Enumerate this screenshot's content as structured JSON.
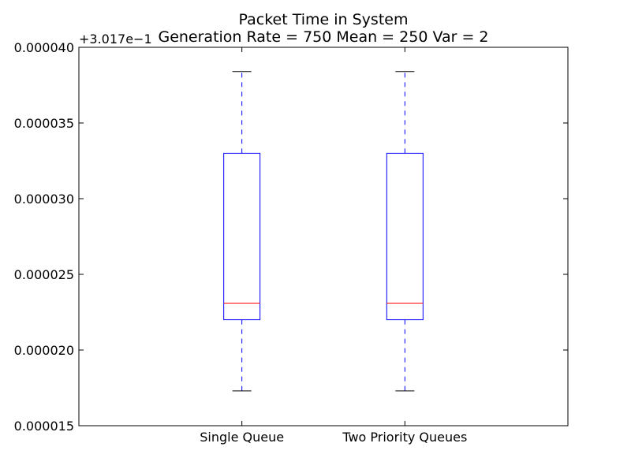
{
  "chart_data": {
    "type": "box",
    "title": "Packet Time in System",
    "subtitle": "Generation Rate = 750 Mean = 250 Var = 2",
    "offset_label": "+3.017e−1",
    "xlabel": "",
    "ylabel": "",
    "categories": [
      "Single Queue",
      "Two Priority Queues"
    ],
    "ylim": [
      1.5e-05,
      4e-05
    ],
    "yticks": [
      1.5e-05,
      2e-05,
      2.5e-05,
      3e-05,
      3.5e-05,
      4e-05
    ],
    "ytick_labels": [
      "0.000015",
      "0.000020",
      "0.000025",
      "0.000030",
      "0.000035",
      "0.000040"
    ],
    "boxes": [
      {
        "category": "Single Queue",
        "whisker_low": 1.73e-05,
        "q1": 2.2e-05,
        "median": 2.31e-05,
        "q3": 3.3e-05,
        "whisker_high": 3.84e-05
      },
      {
        "category": "Two Priority Queues",
        "whisker_low": 1.73e-05,
        "q1": 2.2e-05,
        "median": 2.31e-05,
        "q3": 3.3e-05,
        "whisker_high": 3.84e-05
      }
    ],
    "grid": false,
    "colors": {
      "box": "#0000ff",
      "median": "#ff0000",
      "whisker": "#0000ff",
      "cap": "#000000"
    }
  }
}
